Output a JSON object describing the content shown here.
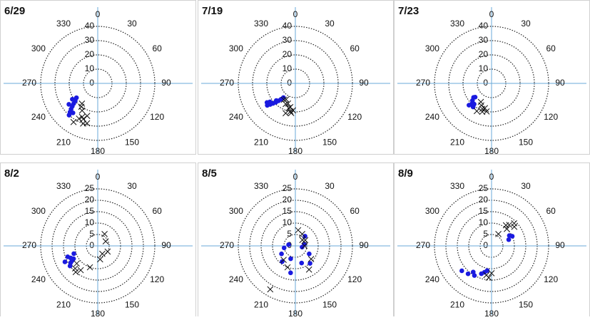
{
  "chart_data": [
    {
      "type": "polar-scatter",
      "title": "6/29",
      "rlim": [
        0,
        40
      ],
      "rticks": [
        0,
        10,
        20,
        30,
        40
      ],
      "angle_ticks": [
        0,
        30,
        60,
        90,
        120,
        150,
        180,
        210,
        240,
        270,
        300,
        330
      ],
      "series": [
        {
          "color": "#1a1ae0",
          "marker": "dot",
          "theta": [
            232,
            230,
            228,
            226,
            224,
            222,
            236,
            234,
            238,
            220
          ],
          "r": [
            20,
            22,
            24,
            26,
            28,
            30,
            18,
            25,
            21,
            27
          ]
        },
        {
          "color": "#111111",
          "marker": "cross",
          "theta": [
            210,
            205,
            200,
            215,
            208,
            198,
            212,
            218,
            202,
            195
          ],
          "r": [
            22,
            26,
            30,
            20,
            28,
            24,
            32,
            18,
            27,
            29
          ]
        }
      ]
    },
    {
      "type": "polar-scatter",
      "title": "7/19",
      "rlim": [
        0,
        40
      ],
      "rticks": [
        0,
        10,
        20,
        30,
        40
      ],
      "angle_ticks": [
        0,
        30,
        60,
        90,
        120,
        150,
        180,
        210,
        240,
        270,
        300,
        330
      ],
      "series": [
        {
          "color": "#1a1ae0",
          "marker": "dot",
          "theta": [
            232,
            230,
            228,
            226,
            224,
            222,
            220,
            236,
            234,
            228
          ],
          "r": [
            25,
            23,
            21,
            19,
            17,
            15,
            13,
            24,
            22,
            18
          ]
        },
        {
          "color": "#111111",
          "marker": "cross",
          "theta": [
            200,
            195,
            190,
            205,
            210,
            185,
            198,
            215,
            192,
            188
          ],
          "r": [
            15,
            18,
            20,
            16,
            13,
            19,
            22,
            14,
            17,
            21
          ]
        }
      ]
    },
    {
      "type": "polar-scatter",
      "title": "7/23",
      "rlim": [
        0,
        40
      ],
      "rticks": [
        0,
        10,
        20,
        30,
        40
      ],
      "angle_ticks": [
        0,
        30,
        60,
        90,
        120,
        150,
        180,
        210,
        240,
        270,
        300,
        330
      ],
      "series": [
        {
          "color": "#1a1ae0",
          "marker": "dot",
          "theta": [
            228,
            224,
            220,
            232,
            226,
            218,
            230
          ],
          "r": [
            18,
            20,
            19,
            16,
            22,
            21,
            15
          ]
        },
        {
          "color": "#111111",
          "marker": "cross",
          "theta": [
            205,
            200,
            195,
            210,
            198,
            190,
            208
          ],
          "r": [
            17,
            19,
            18,
            15,
            21,
            20,
            22
          ]
        }
      ]
    },
    {
      "type": "polar-scatter",
      "title": "8/2",
      "rlim": [
        0,
        25
      ],
      "rticks": [
        0,
        5,
        10,
        15,
        20,
        25
      ],
      "angle_ticks": [
        0,
        30,
        60,
        90,
        120,
        150,
        180,
        210,
        240,
        270,
        300,
        330
      ],
      "series": [
        {
          "color": "#1a1ae0",
          "marker": "dot",
          "theta": [
            250,
            246,
            242,
            238,
            234,
            252,
            244,
            240
          ],
          "r": [
            14,
            13,
            12,
            14,
            15,
            11,
            16,
            13
          ]
        },
        {
          "color": "#111111",
          "marker": "cross",
          "theta": [
            225,
            220,
            230,
            215,
            30,
            60,
            120,
            150,
            170,
            200
          ],
          "r": [
            14,
            15,
            12,
            13,
            6,
            4,
            5,
            4,
            6,
            10
          ]
        }
      ]
    },
    {
      "type": "polar-scatter",
      "title": "8/5",
      "rlim": [
        0,
        25
      ],
      "rticks": [
        0,
        5,
        10,
        15,
        20,
        25
      ],
      "angle_ticks": [
        0,
        30,
        60,
        90,
        120,
        150,
        180,
        210,
        240,
        270,
        300,
        330
      ],
      "series": [
        {
          "color": "#1a1ae0",
          "marker": "dot",
          "theta": [
            45,
            80,
            120,
            160,
            200,
            220,
            240,
            260,
            280,
            140,
            100,
            190
          ],
          "r": [
            6,
            4,
            7,
            8,
            6,
            9,
            7,
            5,
            3,
            10,
            3,
            12
          ]
        },
        {
          "color": "#111111",
          "marker": "cross",
          "theta": [
            30,
            60,
            90,
            130,
            150,
            210,
            220,
            200,
            10,
            50
          ],
          "r": [
            6,
            5,
            4,
            9,
            12,
            22,
            8,
            10,
            7,
            4
          ]
        }
      ]
    },
    {
      "type": "polar-scatter",
      "title": "8/9",
      "rlim": [
        0,
        25
      ],
      "rticks": [
        0,
        5,
        10,
        15,
        20,
        25
      ],
      "angle_ticks": [
        0,
        30,
        60,
        90,
        120,
        150,
        180,
        210,
        240,
        270,
        300,
        330
      ],
      "series": [
        {
          "color": "#1a1ae0",
          "marker": "dot",
          "theta": [
            60,
            65,
            70,
            230,
            220,
            215,
            200,
            195,
            190,
            210
          ],
          "r": [
            9,
            10,
            8,
            17,
            16,
            14,
            13,
            12,
            11,
            15
          ]
        },
        {
          "color": "#111111",
          "marker": "cross",
          "theta": [
            40,
            45,
            35,
            50,
            42,
            190,
            185,
            180,
            30
          ],
          "r": [
            12,
            14,
            11,
            13,
            10,
            13,
            14,
            12,
            6
          ]
        }
      ]
    }
  ]
}
